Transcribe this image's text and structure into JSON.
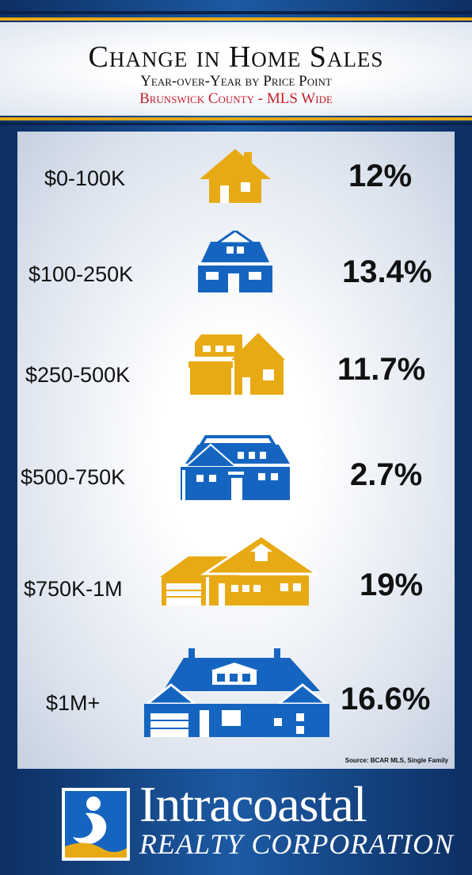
{
  "header": {
    "title": "Change in Home Sales",
    "subtitle": "Year-over-Year by Price Point",
    "region": "Brunswick County - MLS Wide"
  },
  "rows": [
    {
      "label": "$0-100K",
      "value": "12%",
      "color": "#e8aa14",
      "icon": "small-cottage-icon"
    },
    {
      "label": "$100-250K",
      "value": "13.4%",
      "color": "#1565c0",
      "icon": "house-with-dormer-icon"
    },
    {
      "label": "$250-500K",
      "value": "11.7%",
      "color": "#e8aa14",
      "icon": "two-story-house-icon"
    },
    {
      "label": "$500-750K",
      "value": "2.7%",
      "color": "#1565c0",
      "icon": "large-house-icon"
    },
    {
      "label": "$750K-1M",
      "value": "19%",
      "color": "#e8aa14",
      "icon": "ranch-house-garage-icon"
    },
    {
      "label": "$1M+",
      "value": "16.6%",
      "color": "#1565c0",
      "icon": "mansion-icon"
    }
  ],
  "source": "Source: BCAR MLS, Single Family",
  "footer": {
    "brand": "Intracoastal",
    "brand_sub": "REALTY CORPORATION",
    "logo_icon": "intracoastal-logo-icon"
  },
  "colors": {
    "navy": "#0d2f63",
    "gold": "#e8aa14",
    "blue": "#1565c0",
    "region_red": "#c21f2b"
  }
}
